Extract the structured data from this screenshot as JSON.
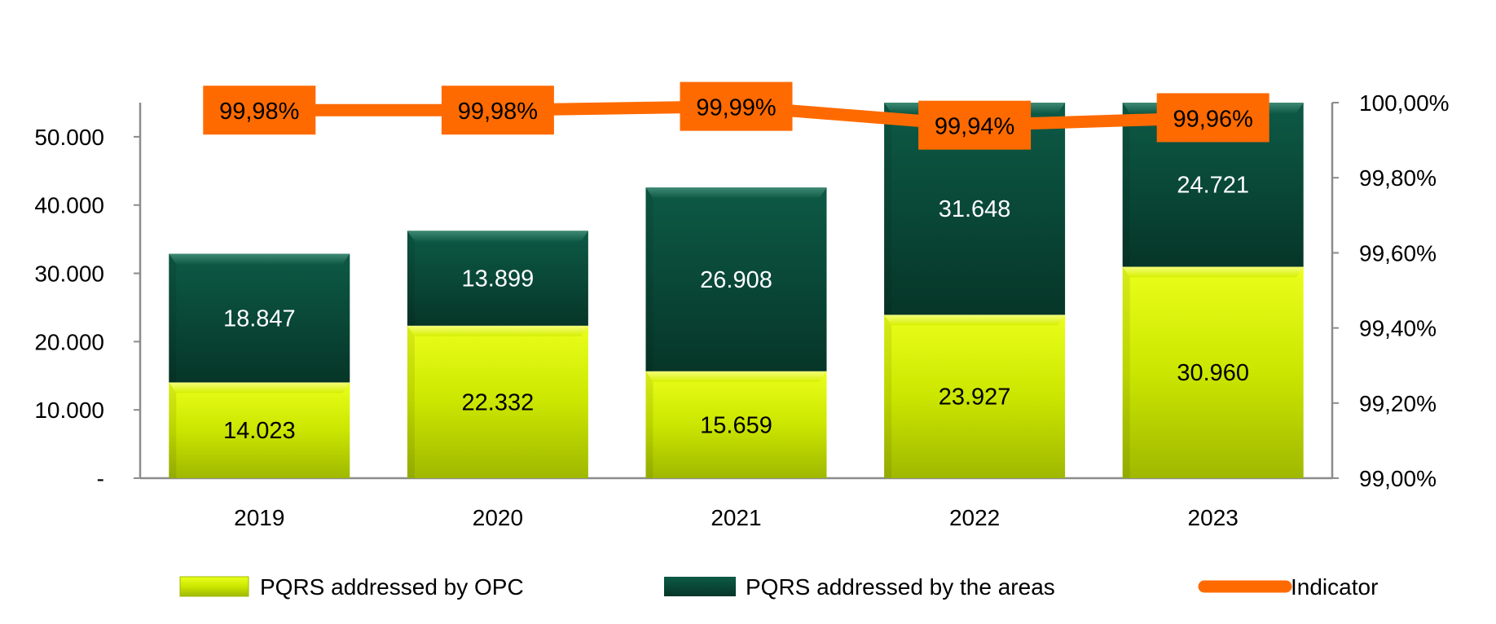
{
  "chart_data": {
    "type": "bar",
    "stacked": true,
    "categories": [
      "2019",
      "2020",
      "2021",
      "2022",
      "2023"
    ],
    "series": [
      {
        "name": "PQRS addressed by OPC",
        "values": [
          14023,
          22332,
          15659,
          23927,
          30960
        ],
        "labels": [
          "14.023",
          "22.332",
          "15.659",
          "23.927",
          "30.960"
        ],
        "color": "#c8e800",
        "label_color": "#000000"
      },
      {
        "name": "PQRS addressed by the areas",
        "values": [
          18847,
          13899,
          26908,
          31648,
          24721
        ],
        "labels": [
          "18.847",
          "13.899",
          "26.908",
          "31.648",
          "24.721"
        ],
        "color": "#0f5a46",
        "label_color": "#ffffff"
      }
    ],
    "line_series": {
      "name": "Indicator",
      "axis": "right",
      "values": [
        99.98,
        99.98,
        99.99,
        99.94,
        99.96
      ],
      "labels": [
        "99,98%",
        "99,98%",
        "99,99%",
        "99,94%",
        "99,96%"
      ],
      "color": "#ff6a00"
    },
    "y_left": {
      "lim": [
        0,
        55000
      ],
      "ticks": [
        0,
        10000,
        20000,
        30000,
        40000,
        50000
      ],
      "tick_labels": [
        "-",
        "10.000",
        "20.000",
        "30.000",
        "40.000",
        "50.000"
      ]
    },
    "y_right": {
      "lim": [
        99.0,
        100.0
      ],
      "ticks": [
        99.0,
        99.2,
        99.4,
        99.6,
        99.8,
        100.0
      ],
      "tick_labels": [
        "99,00%",
        "99,20%",
        "99,40%",
        "99,60%",
        "99,80%",
        "100,00%"
      ]
    },
    "legend": {
      "position": "bottom",
      "entries": [
        "PQRS addressed by OPC",
        "PQRS addressed by the areas",
        "Indicator"
      ]
    },
    "grid": false,
    "title": ""
  }
}
